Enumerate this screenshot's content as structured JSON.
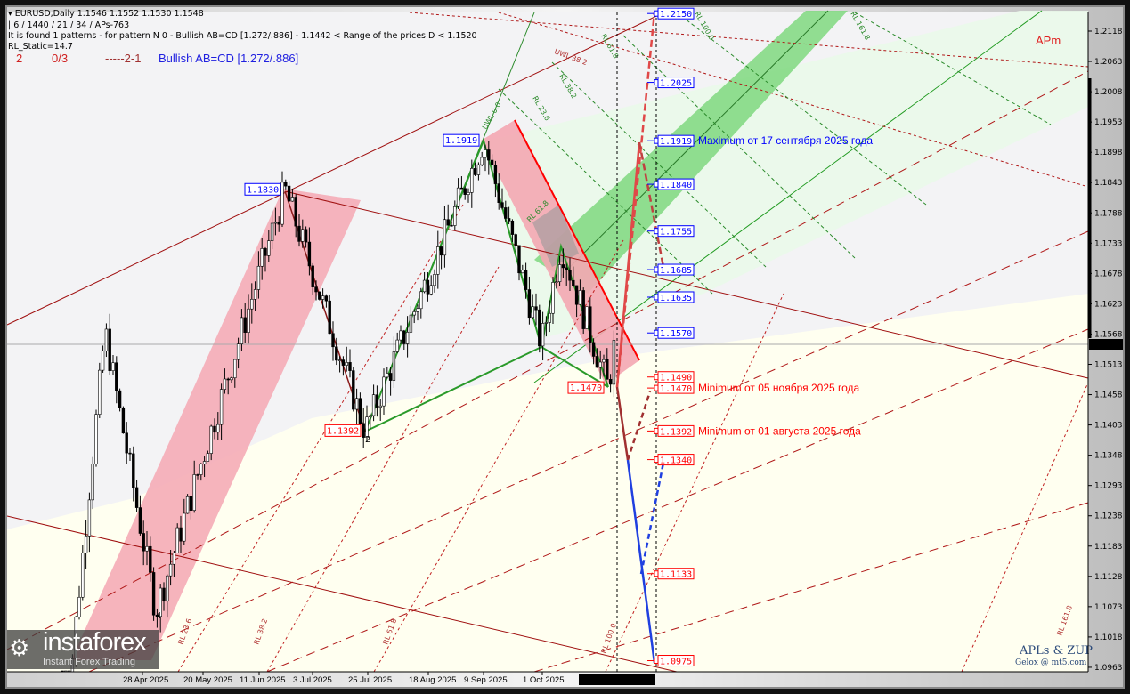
{
  "header": {
    "symbol_line": "EURUSD,Daily  1.1546 1.1552 1.1530 1.1548",
    "params_line": "| 6 / 1440 / 21 / 34 / APs-763",
    "pattern_line": "It is found 1 patterns  -  for pattern N 0 - Bullish AB=CD [1.272/.886] - 1.1442 < Range of the prices D < 1.1520",
    "static_line": "RL_Static=14.7",
    "big": {
      "n": "2",
      "ratio": "0/3",
      "code": "-----2-1",
      "pattern": "Bullish AB=CD [1.272/.886]"
    }
  },
  "indicator_label": "APm",
  "watermark": {
    "title": "APLs & ZUP",
    "sub": "Gelox @ mt5.com"
  },
  "logo": {
    "name": "instaforex",
    "tagline": "Instant Forex Trading"
  },
  "cursor_time": "2025.11.07 12:34",
  "colors": {
    "bull_channel": "#f4a7b3",
    "green_band": "#7fd87f",
    "level_blue": "#0000ff",
    "level_red": "#ff0000",
    "bg": "#fffff0"
  },
  "chart_data": {
    "type": "candlestick",
    "symbol": "EURUSD",
    "timeframe": "Daily",
    "ohlc_last": {
      "open": 1.1546,
      "high": 1.1552,
      "low": 1.153,
      "close": 1.1548
    },
    "current_price": 1.1548,
    "ylim": [
      1.0935,
      1.215
    ],
    "y_ticks": [
      "1.2118",
      "1.2063",
      "1.2008",
      "1.1953",
      "1.1898",
      "1.1843",
      "1.1788",
      "1.1733",
      "1.1678",
      "1.1623",
      "1.1568",
      "1.1513",
      "1.1458",
      "1.1403",
      "1.1348",
      "1.1293",
      "1.1238",
      "1.1183",
      "1.1128",
      "1.1073",
      "1.1018",
      "1.0963"
    ],
    "x_ticks": [
      {
        "date": "2025-04-28",
        "label": "28 Apr 2025"
      },
      {
        "date": "2025-05-20",
        "label": "20 May 2025"
      },
      {
        "date": "2025-06-11",
        "label": "11 Jun 2025"
      },
      {
        "date": "2025-07-03",
        "label": "3 Jul 2025"
      },
      {
        "date": "2025-07-25",
        "label": "25 Jul 2025"
      },
      {
        "date": "2025-08-18",
        "label": "18 Aug 2025"
      },
      {
        "date": "2025-09-09",
        "label": "9 Sep 2025"
      },
      {
        "date": "2025-10-01",
        "label": "1 Oct 2025"
      }
    ],
    "price_path": [
      {
        "date": "2025-03-20",
        "price": 1.08
      },
      {
        "date": "2025-04-21",
        "price": 1.1573
      },
      {
        "date": "2025-05-12",
        "price": 1.1065
      },
      {
        "date": "2025-07-01",
        "price": 1.183
      },
      {
        "date": "2025-08-01",
        "price": 1.1392
      },
      {
        "date": "2025-09-17",
        "price": 1.1919
      },
      {
        "date": "2025-10-09",
        "price": 1.155
      },
      {
        "date": "2025-10-17",
        "price": 1.173
      },
      {
        "date": "2025-11-05",
        "price": 1.147
      },
      {
        "date": "2025-11-07",
        "price": 1.1548
      }
    ],
    "pivot_labels": [
      {
        "date": "2025-07-01",
        "price": 1.183,
        "text": "1.1830",
        "color": "blue"
      },
      {
        "date": "2025-08-01",
        "price": 1.1392,
        "text": "1.1392",
        "color": "red"
      },
      {
        "date": "2025-09-17",
        "price": 1.1919,
        "text": "1.1919",
        "color": "blue"
      },
      {
        "date": "2025-11-05",
        "price": 1.147,
        "text": "1.1470",
        "color": "red"
      }
    ],
    "point_marks": [
      {
        "date": "2025-08-01",
        "text": "2"
      },
      {
        "date": "2025-05-12",
        "text": "4"
      }
    ],
    "levels": [
      {
        "price": 1.215,
        "text": "1.2150",
        "color": "blue"
      },
      {
        "price": 1.2025,
        "text": "1.2025",
        "color": "blue"
      },
      {
        "price": 1.1919,
        "text": "1.1919",
        "color": "blue",
        "note": "Maximum от 17 сентября 2025 года"
      },
      {
        "price": 1.184,
        "text": "1.1840",
        "color": "blue"
      },
      {
        "price": 1.1755,
        "text": "1.1755",
        "color": "blue"
      },
      {
        "price": 1.1685,
        "text": "1.1685",
        "color": "blue"
      },
      {
        "price": 1.1635,
        "text": "1.1635",
        "color": "blue"
      },
      {
        "price": 1.157,
        "text": "1.1570",
        "color": "blue"
      },
      {
        "price": 1.149,
        "text": "1.1490",
        "color": "red"
      },
      {
        "price": 1.147,
        "text": "1.1470",
        "color": "red",
        "note": "Minimum от 05 ноября 2025 года"
      },
      {
        "price": 1.1392,
        "text": "1.1392",
        "color": "red",
        "note": "Minimum от 01 августа 2025 года"
      },
      {
        "price": 1.134,
        "text": "1.1340",
        "color": "red"
      },
      {
        "price": 1.1133,
        "text": "1.1133",
        "color": "red"
      },
      {
        "price": 1.0975,
        "text": "1.0975",
        "color": "red"
      }
    ],
    "fib_labels": [
      "RL 23.6",
      "RL 38.2",
      "RL 61.8",
      "RL 100.0",
      "RL 161.8",
      "UWL 38.2",
      "RL 61.8",
      "RL 38.2",
      "RL 23.6",
      "UWL 0.0",
      "RL 61.8",
      "RL 100.0",
      "RL 161.8"
    ]
  }
}
